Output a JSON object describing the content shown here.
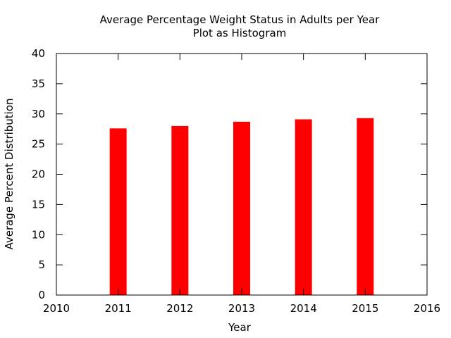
{
  "chart_data": {
    "type": "bar",
    "title_lines": [
      "Average Percentage Weight Status in Adults per Year",
      "Plot as Histogram"
    ],
    "xlabel": "Year",
    "ylabel": "Average Percent Distribution",
    "x": [
      2011,
      2012,
      2013,
      2014,
      2015
    ],
    "values": [
      27.6,
      28.0,
      28.7,
      29.1,
      29.3
    ],
    "xlim": [
      2010,
      2016
    ],
    "ylim": [
      0,
      40
    ],
    "xticks": [
      2010,
      2011,
      2012,
      2013,
      2014,
      2015,
      2016
    ],
    "yticks": [
      0,
      5,
      10,
      15,
      20,
      25,
      30,
      35,
      40
    ],
    "bar_color": "#ff0000",
    "grid": false,
    "legend": "none"
  }
}
